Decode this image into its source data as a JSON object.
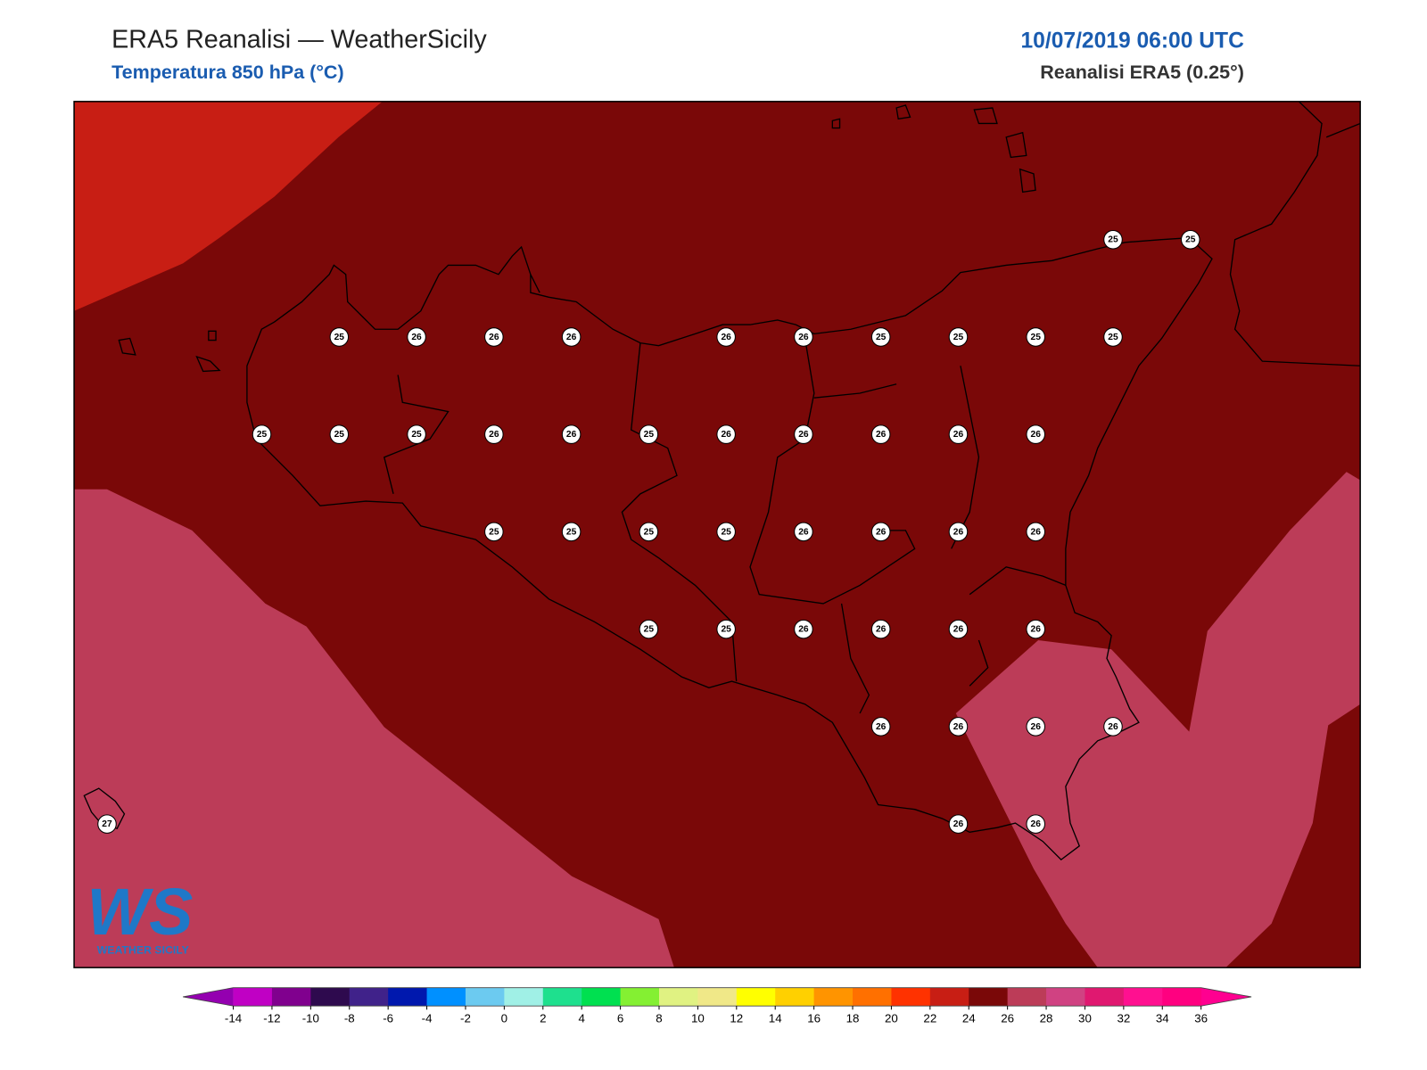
{
  "header": {
    "title": "ERA5 Reanalisi — WeatherSicily",
    "subtitle": "Temperatura 850 hPa (°C)",
    "datetime": "10/07/2019 06:00 UTC",
    "source": "Reanalisi ERA5 (0.25°)"
  },
  "map": {
    "point_values": [
      [
        null,
        null,
        null,
        null,
        null,
        null,
        null,
        null,
        null,
        null,
        null,
        null,
        null,
        25,
        25
      ],
      [
        null,
        null,
        null,
        25,
        26,
        26,
        26,
        null,
        26,
        26,
        25,
        25,
        25,
        25,
        null
      ],
      [
        null,
        null,
        25,
        25,
        25,
        26,
        26,
        25,
        26,
        26,
        26,
        26,
        26,
        null,
        null
      ],
      [
        null,
        null,
        null,
        null,
        null,
        25,
        25,
        25,
        25,
        26,
        26,
        26,
        26,
        null,
        null
      ],
      [
        null,
        null,
        null,
        null,
        null,
        null,
        null,
        25,
        25,
        26,
        26,
        26,
        26,
        null,
        null
      ],
      [
        null,
        null,
        null,
        null,
        null,
        null,
        null,
        null,
        null,
        null,
        26,
        26,
        26,
        26,
        null
      ],
      [
        27,
        null,
        null,
        null,
        null,
        null,
        null,
        null,
        null,
        null,
        null,
        26,
        26,
        null,
        null
      ]
    ]
  },
  "colorbar": {
    "ticks": [
      -14,
      -12,
      -10,
      -8,
      -6,
      -4,
      -2,
      0,
      2,
      4,
      6,
      8,
      10,
      12,
      14,
      16,
      18,
      20,
      22,
      24,
      26,
      28,
      30,
      32,
      34,
      36
    ],
    "colors": [
      "#c000c4",
      "#80008e",
      "#2e0a4e",
      "#40228a",
      "#0018ae",
      "#0090ff",
      "#6ccaf0",
      "#a0f0e6",
      "#1ee08e",
      "#00e050",
      "#84f032",
      "#e0f282",
      "#f0e888",
      "#ffff00",
      "#ffd000",
      "#ff9400",
      "#ff7000",
      "#ff3200",
      "#c81e14",
      "#7a0808",
      "#bc3c58",
      "#d04282",
      "#e01870",
      "#ff1090",
      "#ff0080"
    ],
    "extend_colors": [
      "#9400b0",
      "#ff0090"
    ]
  },
  "logo": {
    "mark": "WS",
    "name": "WEATHER SICILY"
  }
}
